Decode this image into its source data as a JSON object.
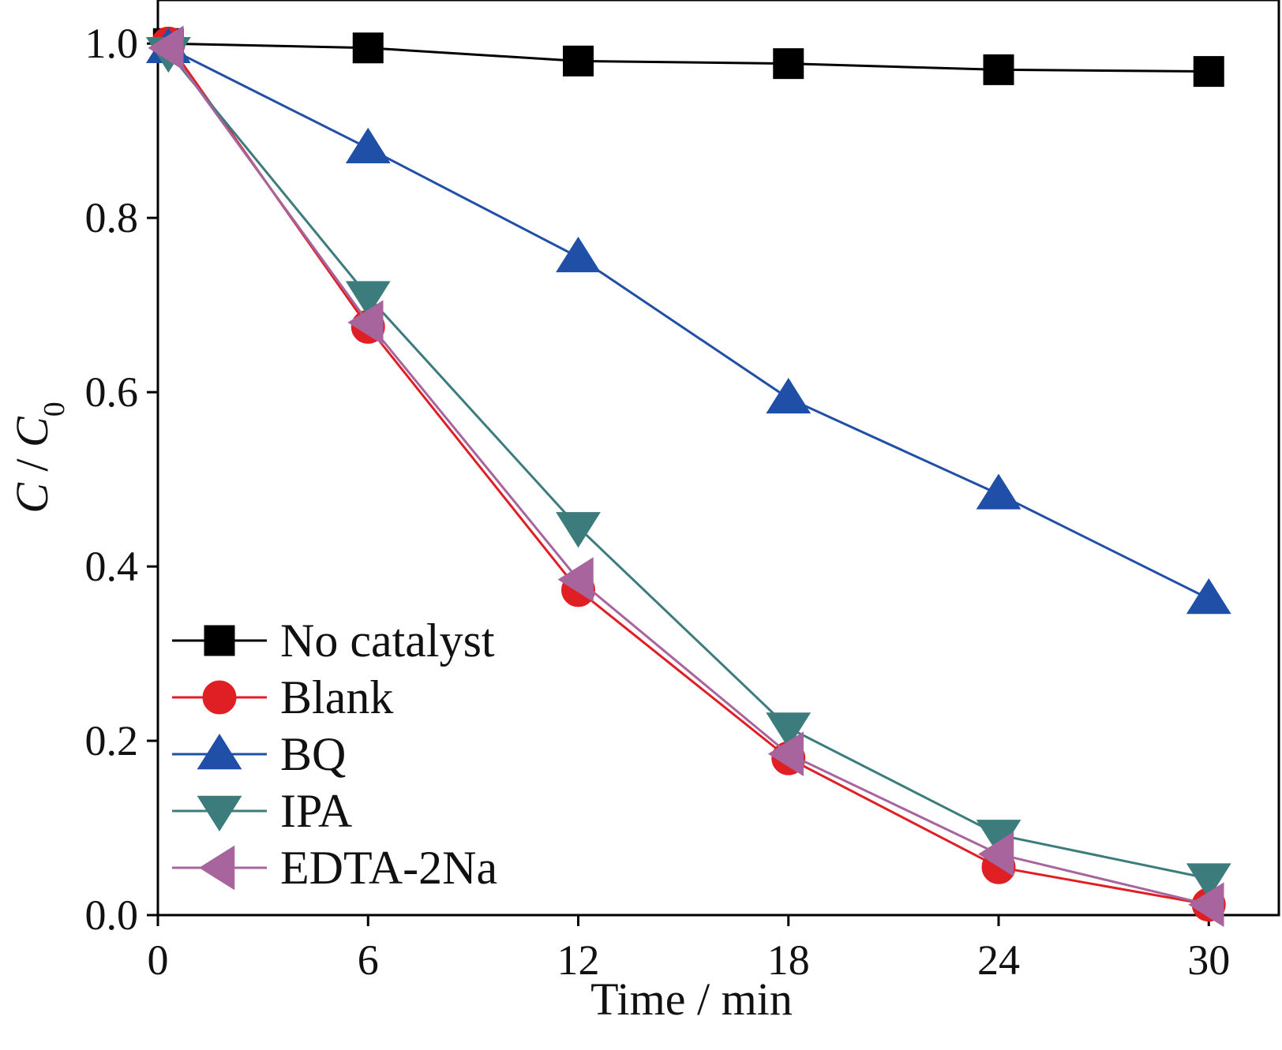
{
  "chart_data": {
    "type": "line",
    "title": "",
    "xlabel": "Time / min",
    "ylabel": {
      "main": "C",
      "sep": " / ",
      "base": "C",
      "sub": "0"
    },
    "xlim": [
      0,
      32
    ],
    "ylim": [
      0,
      1.05
    ],
    "xticks": [
      0,
      6,
      12,
      18,
      24,
      30
    ],
    "yticks": [
      0.0,
      0.2,
      0.4,
      0.6,
      0.8,
      1.0
    ],
    "xtick_labels": [
      "0",
      "6",
      "12",
      "18",
      "24",
      "30"
    ],
    "ytick_labels": [
      "0.0",
      "0.2",
      "0.4",
      "0.6",
      "0.8",
      "1.0"
    ],
    "grid": false,
    "legend_position": "bottom-left",
    "x": [
      0.3,
      6,
      12,
      18,
      24,
      30
    ],
    "series": [
      {
        "name": "No catalyst",
        "marker": "square",
        "color": "#000000",
        "values": [
          1.0,
          0.995,
          0.98,
          0.977,
          0.97,
          0.968
        ]
      },
      {
        "name": "Blank",
        "marker": "circle",
        "color": "#e01f25",
        "values": [
          1.0,
          0.675,
          0.373,
          0.18,
          0.055,
          0.012
        ]
      },
      {
        "name": "BQ",
        "marker": "triangle-up",
        "color": "#1f4fa6",
        "values": [
          0.995,
          0.88,
          0.755,
          0.593,
          0.483,
          0.363
        ]
      },
      {
        "name": "IPA",
        "marker": "triangle-down",
        "color": "#3c7c7c",
        "values": [
          0.99,
          0.71,
          0.445,
          0.215,
          0.092,
          0.042
        ]
      },
      {
        "name": "EDTA-2Na",
        "marker": "triangle-left",
        "color": "#a8649d",
        "values": [
          0.995,
          0.68,
          0.385,
          0.185,
          0.07,
          0.012
        ]
      }
    ]
  }
}
